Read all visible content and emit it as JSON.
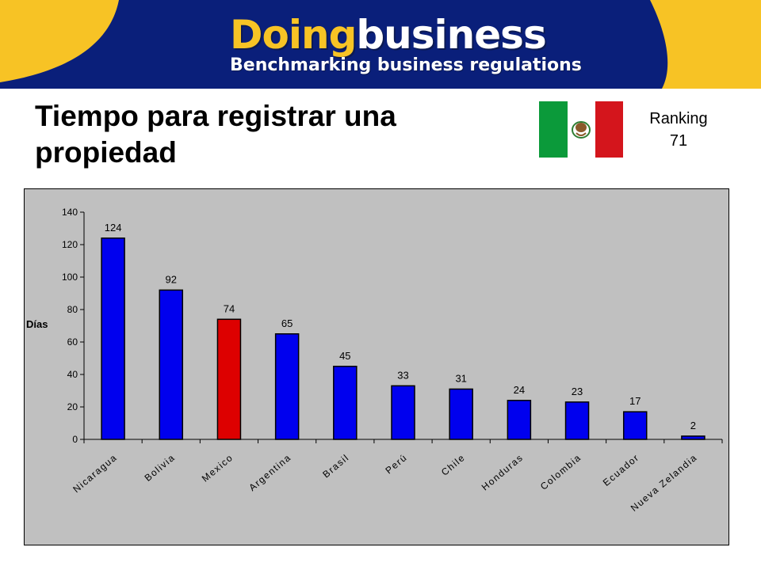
{
  "header": {
    "brand_part1": "Doing",
    "brand_part2": "business",
    "tagline": "Benchmarking business regulations"
  },
  "slide": {
    "title": "Tiempo para registrar una propiedad",
    "ranking_label": "Ranking",
    "ranking_value": "71"
  },
  "flag": {
    "country": "Mexico",
    "colors": [
      "#0b9a3a",
      "#ffffff",
      "#d4151c"
    ],
    "emblem_icon": "eagle-emblem-icon"
  },
  "colors": {
    "banner_blue": "#0a1f7a",
    "banner_yellow": "#f7c325",
    "plot_bg": "#c0c0c0",
    "bar_default": "#0000ee",
    "bar_highlight": "#dd0000"
  },
  "chart_data": {
    "type": "bar",
    "title": "",
    "xlabel": "",
    "ylabel": "Días",
    "categories": [
      "Nicaragua",
      "Bolivia",
      "Mexico",
      "Argentina",
      "Brasil",
      "Perú",
      "Chile",
      "Honduras",
      "Colombia",
      "Ecuador",
      "Nueva Zelandia"
    ],
    "values": [
      124,
      92,
      74,
      65,
      45,
      33,
      31,
      24,
      23,
      17,
      2
    ],
    "data_labels": [
      "124",
      "92",
      "74",
      "65",
      "45",
      "33",
      "31",
      "24",
      "23",
      "17",
      "2"
    ],
    "highlight_category": "Mexico",
    "ylim": [
      0,
      140
    ],
    "yticks": [
      0,
      20,
      40,
      60,
      80,
      100,
      120,
      140
    ],
    "grid": false,
    "legend": "none"
  }
}
